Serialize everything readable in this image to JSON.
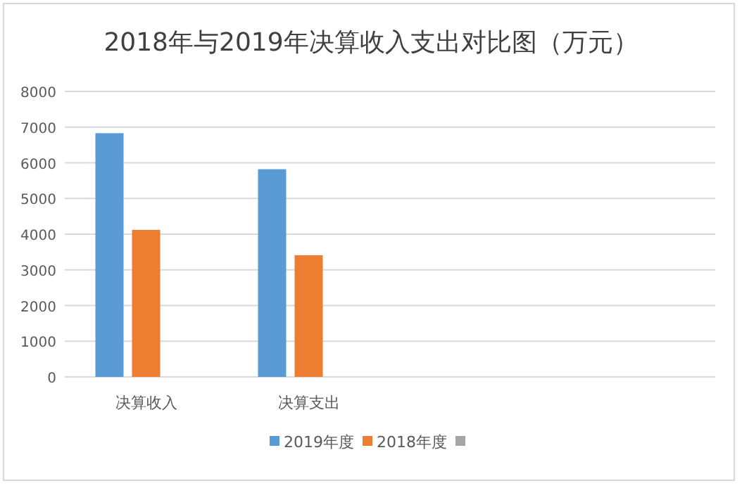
{
  "chart_data": {
    "type": "bar",
    "title": "2018年与2019年决算收入支出对比图（万元）",
    "categories": [
      "决算收入",
      "决算支出",
      null,
      null
    ],
    "series": [
      {
        "name": "2019年度",
        "color": "#5b9bd5",
        "values": [
          6830,
          5820,
          null,
          null
        ]
      },
      {
        "name": "2018年度",
        "color": "#ed7d31",
        "values": [
          4120,
          3410,
          null,
          null
        ]
      },
      {
        "color": "#a5a5a5",
        "values": [
          null,
          null,
          null,
          null
        ]
      }
    ],
    "ylim": [
      0,
      8000
    ],
    "yticks": [
      0,
      1000,
      2000,
      3000,
      4000,
      5000,
      6000,
      7000,
      8000
    ],
    "grid": "y",
    "legend": "bottom"
  }
}
